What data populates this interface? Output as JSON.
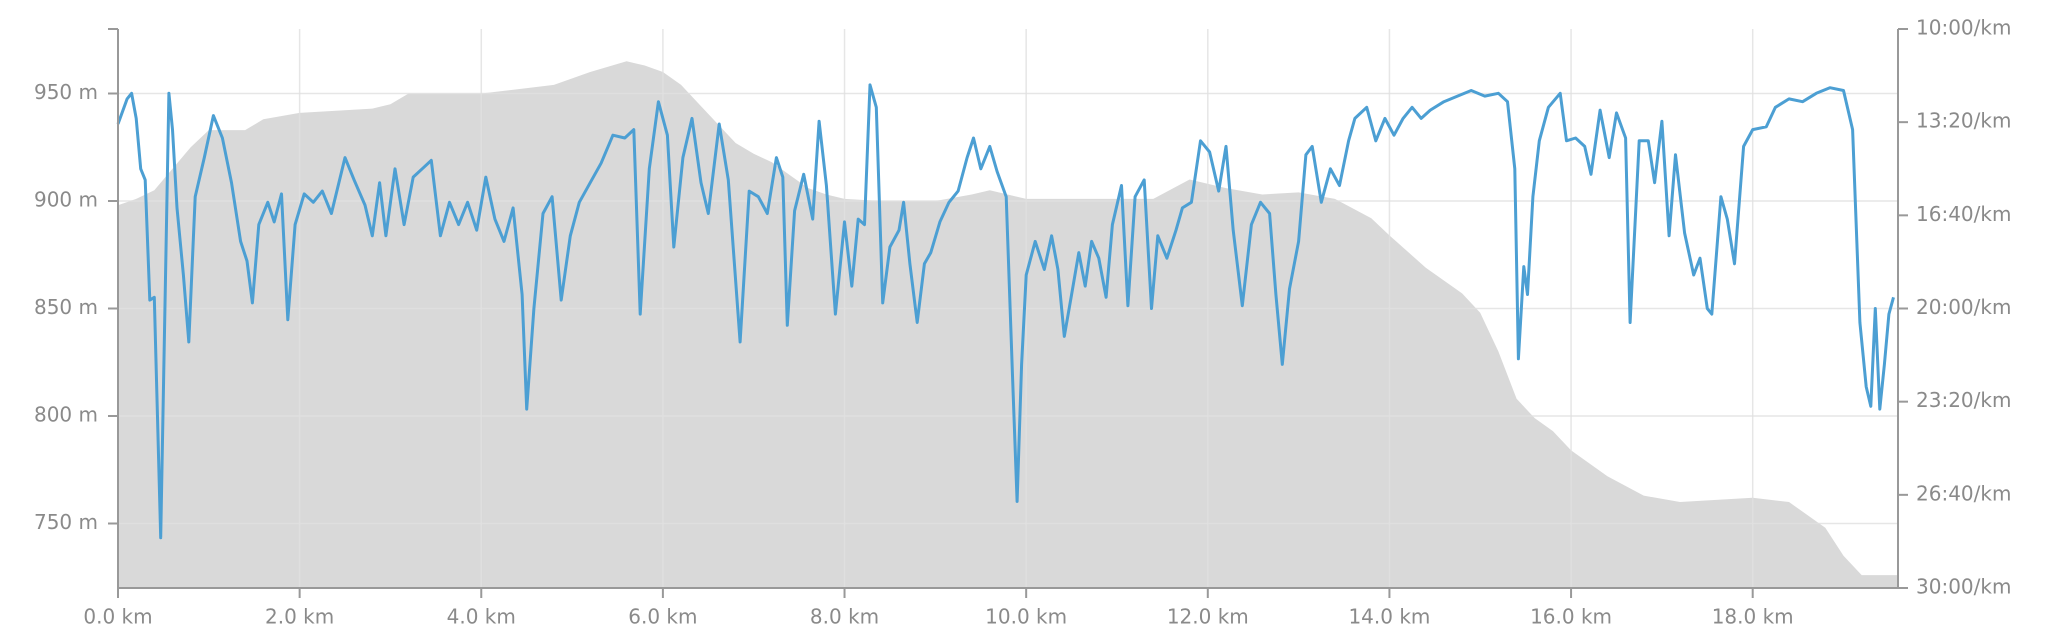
{
  "chart_data": {
    "type": "line",
    "xlim": [
      0,
      19.6
    ],
    "xticks": [
      {
        "value": 0,
        "label": "0.0 km"
      },
      {
        "value": 2,
        "label": "2.0 km"
      },
      {
        "value": 4,
        "label": "4.0 km"
      },
      {
        "value": 6,
        "label": "6.0 km"
      },
      {
        "value": 8,
        "label": "8.0 km"
      },
      {
        "value": 10,
        "label": "10.0 km"
      },
      {
        "value": 12,
        "label": "12.0 km"
      },
      {
        "value": 14,
        "label": "14.0 km"
      },
      {
        "value": 16,
        "label": "16.0 km"
      },
      {
        "value": 18,
        "label": "18.0 km"
      }
    ],
    "ylim": [
      720,
      980
    ],
    "yticks": [
      {
        "value": 750,
        "label": "750 m"
      },
      {
        "value": 800,
        "label": "800 m"
      },
      {
        "value": 850,
        "label": "850 m"
      },
      {
        "value": 900,
        "label": "900 m"
      },
      {
        "value": 950,
        "label": "950 m"
      }
    ],
    "y2lim": [
      30,
      10
    ],
    "y2ticks": [
      {
        "value": 10,
        "label": "10:00/km"
      },
      {
        "value": 13.333,
        "label": "13:20/km"
      },
      {
        "value": 16.667,
        "label": "16:40/km"
      },
      {
        "value": 20,
        "label": "20:00/km"
      },
      {
        "value": 23.333,
        "label": "23:20/km"
      },
      {
        "value": 26.667,
        "label": "26:40/km"
      },
      {
        "value": 30,
        "label": "30:00/km"
      }
    ],
    "grid": true,
    "series": [
      {
        "type": "area",
        "color": "#d9d9d9",
        "x": [
          0,
          0.2,
          0.4,
          0.6,
          0.8,
          1.0,
          1.4,
          1.6,
          2.0,
          2.4,
          2.8,
          3.0,
          3.2,
          3.6,
          4.0,
          4.4,
          4.8,
          5.2,
          5.6,
          5.8,
          6.0,
          6.2,
          6.4,
          6.6,
          6.8,
          7.0,
          7.2,
          7.4,
          7.6,
          7.8,
          8.0,
          8.4,
          9.0,
          9.4,
          9.6,
          10.0,
          10.4,
          11.4,
          11.8,
          12.2,
          12.6,
          13.0,
          13.4,
          13.8,
          14.0,
          14.4,
          14.8,
          15.0,
          15.2,
          15.4,
          15.6,
          15.8,
          16.0,
          16.4,
          16.8,
          17.2,
          17.6,
          18.0,
          18.4,
          18.8,
          19.0,
          19.2,
          19.6
        ],
        "values": [
          898,
          901,
          905,
          915,
          925,
          933,
          933,
          938,
          941,
          942,
          943,
          945,
          950,
          950,
          950,
          952,
          954,
          960,
          965,
          963,
          960,
          954,
          945,
          936,
          927,
          922,
          918,
          912,
          906,
          903,
          901,
          900,
          900,
          903,
          905,
          901,
          901,
          901,
          910,
          906,
          903,
          904,
          901,
          892,
          884,
          869,
          857,
          848,
          830,
          808,
          799,
          793,
          784,
          772,
          763,
          760,
          761,
          762,
          760,
          748,
          735,
          726,
          726
        ]
      },
      {
        "type": "line",
        "color": "#4c9fd3",
        "axis": "y2",
        "x": [
          0.0,
          0.1,
          0.15,
          0.2,
          0.25,
          0.3,
          0.35,
          0.4,
          0.47,
          0.56,
          0.6,
          0.65,
          0.72,
          0.78,
          0.85,
          0.95,
          1.05,
          1.15,
          1.25,
          1.35,
          1.42,
          1.48,
          1.55,
          1.65,
          1.72,
          1.8,
          1.87,
          1.95,
          2.05,
          2.15,
          2.25,
          2.35,
          2.5,
          2.6,
          2.72,
          2.8,
          2.88,
          2.95,
          3.05,
          3.15,
          3.25,
          3.35,
          3.45,
          3.55,
          3.65,
          3.75,
          3.85,
          3.95,
          4.05,
          4.15,
          4.25,
          4.35,
          4.45,
          4.5,
          4.58,
          4.68,
          4.78,
          4.88,
          4.98,
          5.08,
          5.2,
          5.32,
          5.45,
          5.58,
          5.68,
          5.75,
          5.85,
          5.95,
          6.05,
          6.12,
          6.22,
          6.32,
          6.42,
          6.5,
          6.62,
          6.72,
          6.85,
          6.95,
          7.05,
          7.15,
          7.25,
          7.32,
          7.37,
          7.45,
          7.55,
          7.65,
          7.72,
          7.8,
          7.9,
          8.0,
          8.08,
          8.15,
          8.22,
          8.28,
          8.35,
          8.42,
          8.5,
          8.6,
          8.65,
          8.72,
          8.8,
          8.88,
          8.95,
          9.05,
          9.15,
          9.25,
          9.35,
          9.42,
          9.5,
          9.6,
          9.68,
          9.78,
          9.85,
          9.9,
          9.95,
          10.0,
          10.1,
          10.2,
          10.28,
          10.35,
          10.42,
          10.5,
          10.58,
          10.65,
          10.72,
          10.8,
          10.88,
          10.95,
          11.05,
          11.12,
          11.2,
          11.3,
          11.38,
          11.45,
          11.55,
          11.65,
          11.72,
          11.82,
          11.92,
          12.02,
          12.12,
          12.2,
          12.28,
          12.38,
          12.48,
          12.58,
          12.68,
          12.75,
          12.82,
          12.9,
          13.0,
          13.08,
          13.15,
          13.25,
          13.35,
          13.45,
          13.55,
          13.62,
          13.75,
          13.85,
          13.95,
          14.05,
          14.15,
          14.25,
          14.35,
          14.45,
          14.6,
          14.75,
          14.9,
          15.05,
          15.2,
          15.3,
          15.38,
          15.42,
          15.48,
          15.52,
          15.58,
          15.65,
          15.75,
          15.88,
          15.95,
          16.05,
          16.15,
          16.22,
          16.32,
          16.42,
          16.5,
          16.6,
          16.65,
          16.75,
          16.85,
          16.92,
          17.0,
          17.08,
          17.15,
          17.25,
          17.35,
          17.42,
          17.5,
          17.55,
          17.65,
          17.72,
          17.8,
          17.9,
          18.0,
          18.15,
          18.25,
          18.4,
          18.55,
          18.7,
          18.85,
          19.0,
          19.1,
          19.18,
          19.25,
          19.3,
          19.35,
          19.4,
          19.45,
          19.5,
          19.55
        ],
        "values": [
          13.4,
          12.5,
          12.3,
          13.2,
          15.0,
          15.4,
          19.7,
          19.6,
          28.2,
          12.3,
          13.6,
          16.4,
          18.8,
          21.2,
          16.0,
          14.6,
          13.1,
          13.9,
          15.5,
          17.6,
          18.3,
          19.8,
          17.0,
          16.2,
          16.9,
          15.9,
          20.4,
          17.0,
          15.9,
          16.2,
          15.8,
          16.6,
          14.6,
          15.4,
          16.3,
          17.4,
          15.5,
          17.4,
          15.0,
          17.0,
          15.3,
          15.0,
          14.7,
          17.4,
          16.2,
          17.0,
          16.2,
          17.2,
          15.3,
          16.8,
          17.6,
          16.4,
          19.5,
          23.6,
          20.0,
          16.6,
          16.0,
          19.7,
          17.4,
          16.2,
          15.5,
          14.8,
          13.8,
          13.9,
          13.6,
          20.2,
          15.0,
          12.6,
          13.8,
          17.8,
          14.6,
          13.2,
          15.5,
          16.6,
          13.4,
          15.4,
          21.2,
          15.8,
          16.0,
          16.6,
          14.6,
          15.3,
          20.6,
          16.5,
          15.2,
          16.8,
          13.3,
          15.6,
          20.2,
          16.9,
          19.2,
          16.8,
          17.0,
          12.0,
          12.8,
          19.8,
          17.8,
          17.2,
          16.2,
          18.4,
          20.5,
          18.4,
          18.0,
          16.9,
          16.2,
          15.8,
          14.6,
          13.9,
          15.0,
          14.2,
          15.1,
          16.0,
          22.4,
          26.9,
          22.0,
          18.8,
          17.6,
          18.6,
          17.4,
          18.6,
          21.0,
          19.5,
          18.0,
          19.2,
          17.6,
          18.2,
          19.6,
          17.0,
          15.6,
          19.9,
          16.0,
          15.4,
          20.0,
          17.4,
          18.2,
          17.2,
          16.4,
          16.2,
          14.0,
          14.4,
          15.8,
          14.2,
          17.2,
          19.9,
          17.0,
          16.2,
          16.6,
          19.5,
          22.0,
          19.3,
          17.6,
          14.5,
          14.2,
          16.2,
          15.0,
          15.6,
          14.0,
          13.2,
          12.8,
          14.0,
          13.2,
          13.8,
          13.2,
          12.8,
          13.2,
          12.9,
          12.6,
          12.4,
          12.2,
          12.4,
          12.3,
          12.6,
          15.0,
          21.8,
          18.5,
          19.5,
          16.0,
          14.0,
          12.8,
          12.3,
          14.0,
          13.9,
          14.2,
          15.2,
          12.9,
          14.6,
          13.0,
          13.9,
          20.5,
          14.0,
          14.0,
          15.5,
          13.3,
          17.4,
          14.5,
          17.3,
          18.8,
          18.2,
          20.0,
          20.2,
          16.0,
          16.8,
          18.4,
          14.2,
          13.6,
          13.5,
          12.8,
          12.5,
          12.6,
          12.3,
          12.1,
          12.2,
          13.6,
          20.5,
          22.8,
          23.5,
          20.0,
          23.6,
          22.0,
          20.2,
          19.6
        ]
      }
    ]
  }
}
